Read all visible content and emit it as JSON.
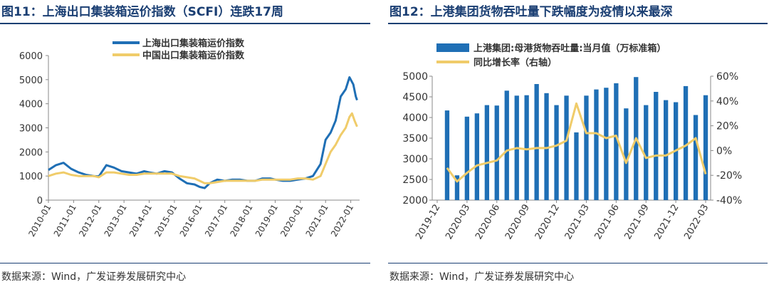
{
  "left": {
    "title": "图11：上海出口集装箱运价指数（SCFI）连跌17周",
    "source": "数据来源：Wind，广发证券发展研究中心"
  },
  "right": {
    "title": "图12：上港集团货物吞吐量下跌幅度为疫情以来最深",
    "source": "数据来源：Wind，广发证券发展研究中心"
  },
  "colors": {
    "blue": "#1f6fb5",
    "gold": "#f0cc6a",
    "title": "#1b3f73"
  },
  "chart_data": [
    {
      "type": "line",
      "title": "图11：上海出口集装箱运价指数（SCFI）连跌17周",
      "x_ticks": [
        "2010-01",
        "2011-01",
        "2012-01",
        "2013-01",
        "2014-01",
        "2015-01",
        "2016-01",
        "2017-01",
        "2018-01",
        "2019-01",
        "2020-01",
        "2021-01",
        "2022-01"
      ],
      "ylim": [
        0,
        6000
      ],
      "y_ticks": [
        "0",
        "1000",
        "2000",
        "3000",
        "4000",
        "5000",
        "6000"
      ],
      "legend": [
        "上海出口集装箱运价指数",
        "中国出口集装箱运价指数"
      ],
      "series": [
        {
          "name": "上海出口集装箱运价指数",
          "color": "#1f6fb5",
          "points": [
            [
              2010.0,
              1250
            ],
            [
              2010.3,
              1450
            ],
            [
              2010.6,
              1550
            ],
            [
              2010.9,
              1300
            ],
            [
              2011.2,
              1150
            ],
            [
              2011.5,
              1050
            ],
            [
              2011.8,
              1000
            ],
            [
              2012.0,
              980
            ],
            [
              2012.3,
              1450
            ],
            [
              2012.6,
              1350
            ],
            [
              2012.9,
              1200
            ],
            [
              2013.2,
              1150
            ],
            [
              2013.5,
              1100
            ],
            [
              2013.8,
              1200
            ],
            [
              2014.0,
              1150
            ],
            [
              2014.3,
              1100
            ],
            [
              2014.6,
              1200
            ],
            [
              2014.9,
              1150
            ],
            [
              2015.2,
              900
            ],
            [
              2015.5,
              700
            ],
            [
              2015.8,
              650
            ],
            [
              2016.0,
              550
            ],
            [
              2016.2,
              500
            ],
            [
              2016.4,
              700
            ],
            [
              2016.7,
              850
            ],
            [
              2017.0,
              800
            ],
            [
              2017.3,
              850
            ],
            [
              2017.6,
              850
            ],
            [
              2017.9,
              800
            ],
            [
              2018.2,
              800
            ],
            [
              2018.5,
              900
            ],
            [
              2018.8,
              900
            ],
            [
              2019.0,
              850
            ],
            [
              2019.3,
              800
            ],
            [
              2019.6,
              800
            ],
            [
              2019.9,
              850
            ],
            [
              2020.2,
              900
            ],
            [
              2020.5,
              1000
            ],
            [
              2020.8,
              1500
            ],
            [
              2021.0,
              2500
            ],
            [
              2021.2,
              2800
            ],
            [
              2021.4,
              3300
            ],
            [
              2021.6,
              4300
            ],
            [
              2021.8,
              4600
            ],
            [
              2021.95,
              5100
            ],
            [
              2022.1,
              4800
            ],
            [
              2022.2,
              4300
            ],
            [
              2022.25,
              4150
            ]
          ]
        },
        {
          "name": "中国出口集装箱运价指数",
          "color": "#f0cc6a",
          "points": [
            [
              2010.0,
              1000
            ],
            [
              2010.3,
              1100
            ],
            [
              2010.6,
              1150
            ],
            [
              2010.9,
              1050
            ],
            [
              2011.2,
              1000
            ],
            [
              2011.5,
              1000
            ],
            [
              2011.8,
              1000
            ],
            [
              2012.0,
              950
            ],
            [
              2012.3,
              1150
            ],
            [
              2012.6,
              1150
            ],
            [
              2012.9,
              1100
            ],
            [
              2013.2,
              1050
            ],
            [
              2013.5,
              1050
            ],
            [
              2013.8,
              1100
            ],
            [
              2014.0,
              1100
            ],
            [
              2014.3,
              1100
            ],
            [
              2014.6,
              1100
            ],
            [
              2014.9,
              1100
            ],
            [
              2015.2,
              1000
            ],
            [
              2015.5,
              950
            ],
            [
              2015.8,
              900
            ],
            [
              2016.0,
              800
            ],
            [
              2016.2,
              700
            ],
            [
              2016.4,
              700
            ],
            [
              2016.7,
              750
            ],
            [
              2017.0,
              800
            ],
            [
              2017.3,
              800
            ],
            [
              2017.6,
              800
            ],
            [
              2017.9,
              800
            ],
            [
              2018.2,
              800
            ],
            [
              2018.5,
              850
            ],
            [
              2018.8,
              850
            ],
            [
              2019.0,
              850
            ],
            [
              2019.3,
              850
            ],
            [
              2019.6,
              850
            ],
            [
              2019.9,
              900
            ],
            [
              2020.2,
              900
            ],
            [
              2020.5,
              850
            ],
            [
              2020.8,
              1000
            ],
            [
              2021.0,
              1500
            ],
            [
              2021.2,
              2000
            ],
            [
              2021.4,
              2300
            ],
            [
              2021.6,
              2700
            ],
            [
              2021.8,
              3000
            ],
            [
              2021.95,
              3450
            ],
            [
              2022.05,
              3600
            ],
            [
              2022.15,
              3300
            ],
            [
              2022.25,
              3050
            ]
          ]
        }
      ]
    },
    {
      "type": "bar+line",
      "title": "图12：上港集团货物吞吐量下跌幅度为疫情以来最深",
      "legend": [
        "上港集团:母港货物吞吐量:当月值（万标准箱）",
        "同比增长率（右轴）"
      ],
      "x_ticks": [
        "2019-12",
        "2020-03",
        "2020-06",
        "2020-09",
        "2020-12",
        "2021-03",
        "2021-06",
        "2021-09",
        "2021-12",
        "2022-03"
      ],
      "ylim_left": [
        2000,
        5000
      ],
      "y_ticks_left": [
        "2000",
        "2500",
        "3000",
        "3500",
        "4000",
        "4500",
        "5000"
      ],
      "ylim_right": [
        -40,
        60
      ],
      "y_ticks_right": [
        "-40%",
        "-20%",
        "0%",
        "20%",
        "40%",
        "60%"
      ],
      "months": [
        "2020-01",
        "2020-02",
        "2020-03",
        "2020-04",
        "2020-05",
        "2020-06",
        "2020-07",
        "2020-08",
        "2020-09",
        "2020-10",
        "2020-11",
        "2020-12",
        "2021-01",
        "2021-02",
        "2021-03",
        "2021-04",
        "2021-05",
        "2021-06",
        "2021-07",
        "2021-08",
        "2021-09",
        "2021-10",
        "2021-11",
        "2021-12",
        "2022-01",
        "2022-02",
        "2022-03"
      ],
      "series": [
        {
          "name": "上港集团:母港货物吞吐量:当月值（万标准箱）",
          "type": "bar",
          "color": "#1f6fb5",
          "values": [
            4170,
            2600,
            4020,
            4100,
            4300,
            4290,
            4650,
            4530,
            4540,
            4810,
            4590,
            4300,
            4530,
            3640,
            4530,
            4680,
            4720,
            4830,
            4220,
            4980,
            4300,
            4620,
            4420,
            4370,
            4760,
            4060,
            4540
          ]
        },
        {
          "name": "同比增长率（右轴）",
          "type": "line",
          "color": "#f0cc6a",
          "values": [
            -14,
            -25,
            -18,
            -12,
            -10,
            -8,
            0,
            2,
            1,
            2,
            2,
            4,
            8,
            38,
            14,
            14,
            10,
            12,
            -10,
            10,
            -6,
            -4,
            -4,
            0,
            4,
            10,
            -19
          ]
        }
      ]
    }
  ]
}
